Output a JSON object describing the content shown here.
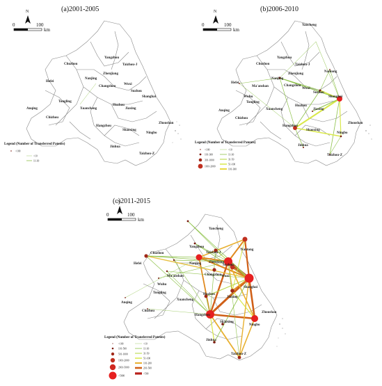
{
  "panels": {
    "a": {
      "title": "(a)2001-2005"
    },
    "b": {
      "title": "(b)2006-2010"
    },
    "c": {
      "title": "(c)2011-2015"
    }
  },
  "north_label": "N",
  "scale": {
    "zero": "0",
    "hundred": "100",
    "unit": "km"
  },
  "legend_title": "Legend (Number of Transferred Patents)",
  "legend_a": {
    "nodes": [
      "<100"
    ],
    "links": [
      "<10",
      "11-30"
    ]
  },
  "legend_b": {
    "nodes": [
      "<100",
      "101-300",
      "301-1000",
      "1001-2000"
    ],
    "links": [
      "<10",
      "11-30",
      "31-50",
      "51-100",
      "101-300"
    ]
  },
  "legend_c": {
    "nodes": [
      "<100",
      "101-500",
      "501-1000",
      "1001-2000",
      "2001-5000",
      ">5000"
    ],
    "links": [
      "<10",
      "11-30",
      "31-50",
      "51-100",
      "101-200",
      "201-500",
      ">500"
    ]
  },
  "cities": {
    "yancheng": "Yancheng",
    "yangzhou": "Yangzhou",
    "taizhouj": "Taizhou-J",
    "chuzhou": "Chuzhou",
    "nantong": "Nantong",
    "nanjing": "Nanjing",
    "zhenjiang": "Zhenjiang",
    "hefei": "Hefei",
    "maanshan": "Ma'anshan",
    "changzhou": "Changzhou",
    "wuxi": "Wuxi",
    "suzhou": "Suzhou",
    "shanghai": "Shanghai",
    "wuhu": "Wuhu",
    "tongling": "Tongling",
    "xuancheng": "Xuancheng",
    "huzhou": "Huzhou",
    "jiaxing": "Jiaxing",
    "anqing": "Anqing",
    "chizhou": "Chizhou",
    "hangzhou": "Hangzhou",
    "shaoxing": "Shaoxing",
    "ningbo": "Ningbo",
    "zhoushan": "Zhoushan",
    "jinhua": "Jinhua",
    "taizhouz": "Taizhou-Z"
  },
  "colors": {
    "link_low": "#8ec24a",
    "link_mid": "#d9e84a",
    "link_high": "#f0b020",
    "link_top": "#d06018",
    "link_max": "#b8201a",
    "node_small": "#7a1a10",
    "node_large": "#e62020"
  }
}
